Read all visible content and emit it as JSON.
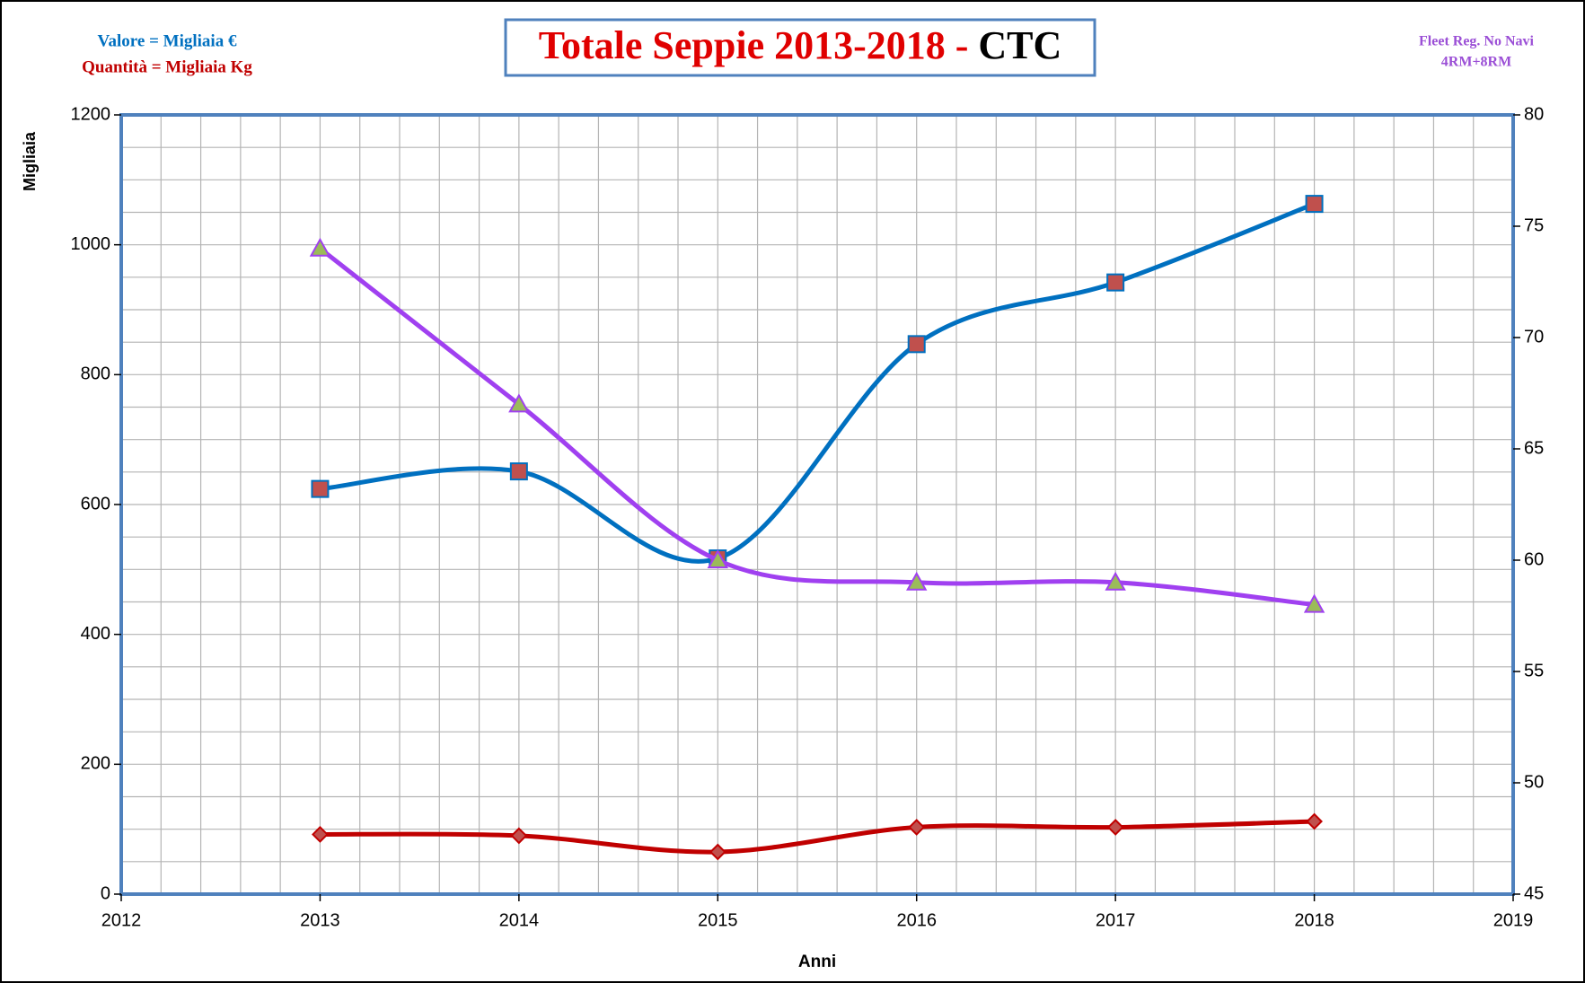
{
  "chart_data": {
    "type": "line",
    "title": [
      "Totale Seppie 2013-2018 - ",
      "CTC"
    ],
    "title_colors": [
      "#e00000",
      "#000000"
    ],
    "annotations": [
      "Valore = Migliaia €",
      "Quantità = Migliaia Kg",
      "Fleet Reg. No Navi",
      "4RM+8RM"
    ],
    "annotation_colors": [
      "#0070c0",
      "#c00000",
      "#9b4fd6",
      "#9b4fd6"
    ],
    "ylabel": "Migliaia",
    "xlabel": "Anni",
    "x": [
      2013,
      2014,
      2015,
      2016,
      2017,
      2018
    ],
    "series": [
      {
        "color": "#0070c0",
        "marker": "square",
        "marker_fill": "#c0504d",
        "values": [
          624,
          651,
          517,
          847,
          942,
          1063
        ]
      },
      {
        "color": "#c00000",
        "marker": "diamond",
        "marker_fill": "#c0504d",
        "values": [
          92,
          90,
          65,
          103,
          103,
          112
        ]
      },
      {
        "color": "#a040f0",
        "marker": "triangle",
        "marker_fill": "#9bbb59",
        "axis": "y2",
        "values": [
          74,
          67,
          60,
          59,
          59,
          58
        ]
      }
    ],
    "xlim": [
      2012,
      2019
    ],
    "xticks": [
      2012,
      2013,
      2014,
      2015,
      2016,
      2017,
      2018,
      2019
    ],
    "ylim": [
      0,
      1200
    ],
    "yticks": [
      0,
      200,
      400,
      600,
      800,
      1000,
      1200
    ],
    "y2lim": [
      45,
      80
    ],
    "y2ticks": [
      45,
      50,
      55,
      60,
      65,
      70,
      75,
      80
    ],
    "grid": true,
    "x_minor_step": 0.2,
    "y_minor_step": 50,
    "smooth": true
  }
}
